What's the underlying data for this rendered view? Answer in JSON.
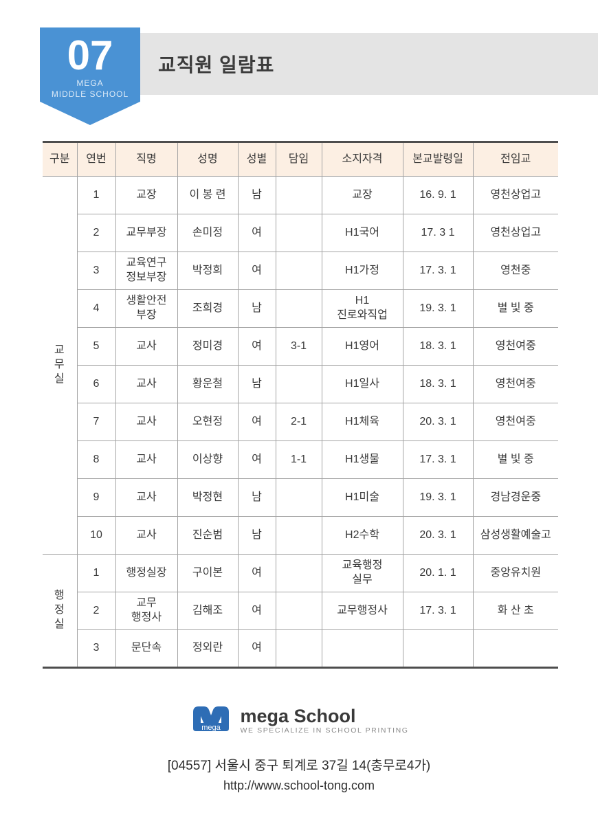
{
  "badge": {
    "number": "07",
    "school_line1": "MEGA",
    "school_line2": "MIDDLE SCHOOL"
  },
  "title_bar": {
    "title": "교직원 일람표"
  },
  "table": {
    "columns": [
      "구분",
      "연번",
      "직명",
      "성명",
      "성별",
      "담임",
      "소지자격",
      "본교발령일",
      "전임교"
    ],
    "groups": [
      {
        "label": "교\n무\n실",
        "rows": [
          [
            "1",
            "교장",
            "이 봉 련",
            "남",
            "",
            "교장",
            "16. 9. 1",
            "영천상업고"
          ],
          [
            "2",
            "교무부장",
            "손미정",
            "여",
            "",
            "H1국어",
            "17. 3 1",
            "영천상업고"
          ],
          [
            "3",
            "교육연구\n정보부장",
            "박정희",
            "여",
            "",
            "H1가정",
            "17. 3. 1",
            "영천중"
          ],
          [
            "4",
            "생활안전\n부장",
            "조희경",
            "남",
            "",
            "H1\n진로와직업",
            "19. 3. 1",
            "별 빛 중"
          ],
          [
            "5",
            "교사",
            "정미경",
            "여",
            "3-1",
            "H1영어",
            "18. 3. 1",
            "영천여중"
          ],
          [
            "6",
            "교사",
            "황운철",
            "남",
            "",
            "H1일사",
            "18. 3. 1",
            "영천여중"
          ],
          [
            "7",
            "교사",
            "오현정",
            "여",
            "2-1",
            "H1체육",
            "20. 3. 1",
            "영천여중"
          ],
          [
            "8",
            "교사",
            "이상향",
            "여",
            "1-1",
            "H1생물",
            "17. 3. 1",
            "별 빛 중"
          ],
          [
            "9",
            "교사",
            "박정현",
            "남",
            "",
            "H1미술",
            "19. 3. 1",
            "경남경운중"
          ],
          [
            "10",
            "교사",
            "진순범",
            "남",
            "",
            "H2수학",
            "20. 3. 1",
            "삼성생활예술고"
          ]
        ]
      },
      {
        "label": "행\n정\n실",
        "rows": [
          [
            "1",
            "행정실장",
            "구이본",
            "여",
            "",
            "교육행정\n실무",
            "20. 1. 1",
            "중앙유치원"
          ],
          [
            "2",
            "교무\n행정사",
            "김해조",
            "여",
            "",
            "교무행정사",
            "17. 3. 1",
            "화 산 초"
          ],
          [
            "3",
            "문단속",
            "정외란",
            "여",
            "",
            "",
            "",
            ""
          ]
        ]
      }
    ]
  },
  "footer": {
    "logo_mark_text": "mega",
    "brand": "mega School",
    "tagline": "WE SPECIALIZE IN SCHOOL PRINTING",
    "address": "[04557] 서울시 중구 퇴계로 37길 14(충무로4가)",
    "url": "http://www.school-tong.com"
  },
  "colors": {
    "badge_blue": "#4a92d4",
    "title_bar_gray": "#e4e4e4",
    "table_header_peach": "#fcefe3",
    "grid_line_gray": "#a3a3a3",
    "thick_line_dark": "#4d4d4d",
    "logo_blue": "#2e6db5"
  }
}
